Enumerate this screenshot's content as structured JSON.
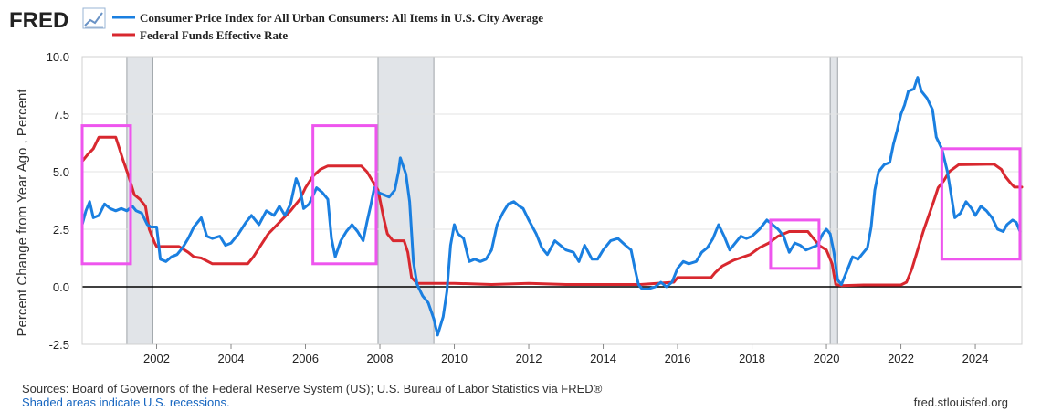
{
  "logo": {
    "text": "FRED",
    "icon": "trend-line-icon"
  },
  "colors": {
    "cpi": "#1a7fe0",
    "ffr": "#d8282f",
    "highlight": "#ee55ee",
    "recession": "#e1e4e8",
    "zero_line": "#000000",
    "grid": "#e3e3e3"
  },
  "footer": {
    "sources": "Sources: Board of Governors of the Federal Reserve System (US); U.S. Bureau of Labor Statistics via FRED®",
    "recession_note": "Shaded areas indicate U.S. recessions.",
    "site": "fred.stlouisfed.org"
  },
  "chart_data": {
    "type": "line",
    "title": "",
    "xlabel": "",
    "ylabel": "Percent Change from Year Ago , Percent",
    "xlim": [
      2000.0,
      2025.25
    ],
    "ylim": [
      -2.5,
      10.0
    ],
    "x_ticks": [
      "2002",
      "2004",
      "2006",
      "2008",
      "2010",
      "2012",
      "2014",
      "2016",
      "2018",
      "2020",
      "2022",
      "2024"
    ],
    "y_ticks": [
      "10.0",
      "7.5",
      "5.0",
      "2.5",
      "0.0",
      "-2.5"
    ],
    "grid": "horizontal",
    "legend_position": "top-left",
    "recessions": [
      [
        2001.2,
        2001.9
      ],
      [
        2007.95,
        2009.45
      ],
      [
        2020.1,
        2020.3
      ]
    ],
    "highlight_boxes": [
      {
        "x": [
          2000.0,
          2001.3
        ],
        "y": [
          1.0,
          7.0
        ]
      },
      {
        "x": [
          2006.2,
          2007.9
        ],
        "y": [
          1.0,
          7.0
        ]
      },
      {
        "x": [
          2018.5,
          2019.8
        ],
        "y": [
          0.8,
          2.9
        ]
      },
      {
        "x": [
          2023.1,
          2025.2
        ],
        "y": [
          1.2,
          6.0
        ]
      }
    ],
    "series": [
      {
        "name": "Consumer Price Index for All Urban Consumers: All Items in U.S. City Average",
        "color": "#1a7fe0",
        "points": [
          [
            2000.0,
            2.7
          ],
          [
            2000.1,
            3.3
          ],
          [
            2000.2,
            3.7
          ],
          [
            2000.3,
            3.0
          ],
          [
            2000.45,
            3.1
          ],
          [
            2000.6,
            3.6
          ],
          [
            2000.75,
            3.4
          ],
          [
            2000.9,
            3.3
          ],
          [
            2001.05,
            3.4
          ],
          [
            2001.2,
            3.3
          ],
          [
            2001.35,
            3.5
          ],
          [
            2001.45,
            3.3
          ],
          [
            2001.6,
            3.2
          ],
          [
            2001.75,
            2.7
          ],
          [
            2001.85,
            2.6
          ],
          [
            2002.0,
            2.6
          ],
          [
            2002.1,
            1.2
          ],
          [
            2002.25,
            1.1
          ],
          [
            2002.4,
            1.3
          ],
          [
            2002.55,
            1.4
          ],
          [
            2002.7,
            1.7
          ],
          [
            2002.85,
            2.1
          ],
          [
            2003.0,
            2.6
          ],
          [
            2003.2,
            3.0
          ],
          [
            2003.35,
            2.2
          ],
          [
            2003.5,
            2.1
          ],
          [
            2003.7,
            2.2
          ],
          [
            2003.85,
            1.8
          ],
          [
            2004.0,
            1.9
          ],
          [
            2004.2,
            2.3
          ],
          [
            2004.4,
            2.8
          ],
          [
            2004.55,
            3.1
          ],
          [
            2004.75,
            2.7
          ],
          [
            2004.95,
            3.3
          ],
          [
            2005.15,
            3.1
          ],
          [
            2005.3,
            3.5
          ],
          [
            2005.45,
            3.1
          ],
          [
            2005.6,
            3.6
          ],
          [
            2005.75,
            4.7
          ],
          [
            2005.85,
            4.3
          ],
          [
            2005.95,
            3.4
          ],
          [
            2006.1,
            3.6
          ],
          [
            2006.3,
            4.3
          ],
          [
            2006.45,
            4.1
          ],
          [
            2006.6,
            3.8
          ],
          [
            2006.7,
            2.1
          ],
          [
            2006.8,
            1.3
          ],
          [
            2006.95,
            2.0
          ],
          [
            2007.1,
            2.4
          ],
          [
            2007.25,
            2.7
          ],
          [
            2007.4,
            2.4
          ],
          [
            2007.55,
            2.0
          ],
          [
            2007.65,
            2.8
          ],
          [
            2007.75,
            3.5
          ],
          [
            2007.85,
            4.3
          ],
          [
            2007.95,
            4.1
          ],
          [
            2008.1,
            4.0
          ],
          [
            2008.25,
            3.9
          ],
          [
            2008.4,
            4.2
          ],
          [
            2008.5,
            5.0
          ],
          [
            2008.55,
            5.6
          ],
          [
            2008.7,
            4.9
          ],
          [
            2008.8,
            3.7
          ],
          [
            2008.9,
            1.1
          ],
          [
            2009.0,
            0.1
          ],
          [
            2009.15,
            -0.4
          ],
          [
            2009.3,
            -0.7
          ],
          [
            2009.45,
            -1.4
          ],
          [
            2009.55,
            -2.1
          ],
          [
            2009.7,
            -1.3
          ],
          [
            2009.8,
            -0.2
          ],
          [
            2009.9,
            1.8
          ],
          [
            2010.0,
            2.7
          ],
          [
            2010.1,
            2.3
          ],
          [
            2010.25,
            2.1
          ],
          [
            2010.4,
            1.1
          ],
          [
            2010.55,
            1.2
          ],
          [
            2010.7,
            1.1
          ],
          [
            2010.85,
            1.2
          ],
          [
            2011.0,
            1.6
          ],
          [
            2011.15,
            2.7
          ],
          [
            2011.3,
            3.2
          ],
          [
            2011.45,
            3.6
          ],
          [
            2011.6,
            3.7
          ],
          [
            2011.75,
            3.5
          ],
          [
            2011.85,
            3.4
          ],
          [
            2012.0,
            2.9
          ],
          [
            2012.2,
            2.3
          ],
          [
            2012.35,
            1.7
          ],
          [
            2012.5,
            1.4
          ],
          [
            2012.7,
            2.0
          ],
          [
            2012.85,
            1.8
          ],
          [
            2013.0,
            1.6
          ],
          [
            2013.2,
            1.5
          ],
          [
            2013.35,
            1.1
          ],
          [
            2013.5,
            1.8
          ],
          [
            2013.7,
            1.2
          ],
          [
            2013.85,
            1.2
          ],
          [
            2014.0,
            1.6
          ],
          [
            2014.2,
            2.0
          ],
          [
            2014.4,
            2.1
          ],
          [
            2014.6,
            1.8
          ],
          [
            2014.75,
            1.6
          ],
          [
            2014.85,
            0.8
          ],
          [
            2014.95,
            0.1
          ],
          [
            2015.05,
            -0.1
          ],
          [
            2015.2,
            -0.1
          ],
          [
            2015.4,
            0.0
          ],
          [
            2015.55,
            0.2
          ],
          [
            2015.7,
            0.0
          ],
          [
            2015.85,
            0.2
          ],
          [
            2016.0,
            0.8
          ],
          [
            2016.15,
            1.1
          ],
          [
            2016.3,
            1.0
          ],
          [
            2016.5,
            1.1
          ],
          [
            2016.65,
            1.5
          ],
          [
            2016.8,
            1.7
          ],
          [
            2016.95,
            2.1
          ],
          [
            2017.1,
            2.7
          ],
          [
            2017.25,
            2.2
          ],
          [
            2017.4,
            1.6
          ],
          [
            2017.55,
            1.9
          ],
          [
            2017.7,
            2.2
          ],
          [
            2017.85,
            2.1
          ],
          [
            2018.0,
            2.2
          ],
          [
            2018.2,
            2.5
          ],
          [
            2018.4,
            2.9
          ],
          [
            2018.55,
            2.7
          ],
          [
            2018.7,
            2.5
          ],
          [
            2018.85,
            2.2
          ],
          [
            2019.0,
            1.5
          ],
          [
            2019.15,
            1.9
          ],
          [
            2019.3,
            1.8
          ],
          [
            2019.45,
            1.6
          ],
          [
            2019.6,
            1.7
          ],
          [
            2019.75,
            1.8
          ],
          [
            2019.9,
            2.3
          ],
          [
            2020.0,
            2.5
          ],
          [
            2020.1,
            2.3
          ],
          [
            2020.2,
            1.5
          ],
          [
            2020.3,
            0.3
          ],
          [
            2020.4,
            0.1
          ],
          [
            2020.55,
            0.7
          ],
          [
            2020.7,
            1.3
          ],
          [
            2020.85,
            1.2
          ],
          [
            2020.95,
            1.4
          ],
          [
            2021.1,
            1.7
          ],
          [
            2021.2,
            2.6
          ],
          [
            2021.3,
            4.2
          ],
          [
            2021.4,
            5.0
          ],
          [
            2021.55,
            5.3
          ],
          [
            2021.7,
            5.4
          ],
          [
            2021.8,
            6.2
          ],
          [
            2021.9,
            6.8
          ],
          [
            2022.0,
            7.5
          ],
          [
            2022.1,
            7.9
          ],
          [
            2022.2,
            8.5
          ],
          [
            2022.35,
            8.6
          ],
          [
            2022.45,
            9.1
          ],
          [
            2022.55,
            8.5
          ],
          [
            2022.7,
            8.2
          ],
          [
            2022.85,
            7.7
          ],
          [
            2022.95,
            6.5
          ],
          [
            2023.1,
            6.0
          ],
          [
            2023.25,
            5.0
          ],
          [
            2023.35,
            4.0
          ],
          [
            2023.45,
            3.0
          ],
          [
            2023.6,
            3.2
          ],
          [
            2023.75,
            3.7
          ],
          [
            2023.9,
            3.4
          ],
          [
            2024.0,
            3.1
          ],
          [
            2024.15,
            3.5
          ],
          [
            2024.3,
            3.3
          ],
          [
            2024.45,
            3.0
          ],
          [
            2024.6,
            2.5
          ],
          [
            2024.75,
            2.4
          ],
          [
            2024.85,
            2.7
          ],
          [
            2025.0,
            2.9
          ],
          [
            2025.1,
            2.8
          ],
          [
            2025.2,
            2.4
          ]
        ]
      },
      {
        "name": "Federal Funds Effective Rate",
        "color": "#d8282f",
        "points": [
          [
            2000.0,
            5.45
          ],
          [
            2000.15,
            5.75
          ],
          [
            2000.3,
            6.0
          ],
          [
            2000.45,
            6.5
          ],
          [
            2000.6,
            6.5
          ],
          [
            2000.75,
            6.5
          ],
          [
            2000.9,
            6.5
          ],
          [
            2001.0,
            6.0
          ],
          [
            2001.1,
            5.5
          ],
          [
            2001.25,
            4.8
          ],
          [
            2001.4,
            4.0
          ],
          [
            2001.55,
            3.8
          ],
          [
            2001.7,
            3.5
          ],
          [
            2001.8,
            2.5
          ],
          [
            2001.95,
            1.9
          ],
          [
            2002.0,
            1.75
          ],
          [
            2002.3,
            1.75
          ],
          [
            2002.6,
            1.75
          ],
          [
            2002.85,
            1.5
          ],
          [
            2003.0,
            1.3
          ],
          [
            2003.2,
            1.25
          ],
          [
            2003.5,
            1.0
          ],
          [
            2003.8,
            1.0
          ],
          [
            2004.0,
            1.0
          ],
          [
            2004.45,
            1.0
          ],
          [
            2004.6,
            1.3
          ],
          [
            2004.8,
            1.8
          ],
          [
            2005.0,
            2.3
          ],
          [
            2005.3,
            2.8
          ],
          [
            2005.6,
            3.3
          ],
          [
            2005.85,
            3.8
          ],
          [
            2006.0,
            4.3
          ],
          [
            2006.2,
            4.8
          ],
          [
            2006.4,
            5.1
          ],
          [
            2006.6,
            5.25
          ],
          [
            2007.5,
            5.25
          ],
          [
            2007.65,
            5.0
          ],
          [
            2007.8,
            4.6
          ],
          [
            2007.95,
            4.2
          ],
          [
            2008.1,
            3.0
          ],
          [
            2008.2,
            2.3
          ],
          [
            2008.35,
            2.0
          ],
          [
            2008.65,
            2.0
          ],
          [
            2008.75,
            1.5
          ],
          [
            2008.85,
            0.4
          ],
          [
            2009.0,
            0.15
          ],
          [
            2010.0,
            0.15
          ],
          [
            2011.0,
            0.1
          ],
          [
            2012.0,
            0.15
          ],
          [
            2013.0,
            0.1
          ],
          [
            2014.0,
            0.1
          ],
          [
            2015.0,
            0.1
          ],
          [
            2015.9,
            0.2
          ],
          [
            2016.0,
            0.4
          ],
          [
            2016.9,
            0.4
          ],
          [
            2017.0,
            0.6
          ],
          [
            2017.2,
            0.9
          ],
          [
            2017.5,
            1.15
          ],
          [
            2017.95,
            1.4
          ],
          [
            2018.2,
            1.7
          ],
          [
            2018.45,
            1.9
          ],
          [
            2018.7,
            2.2
          ],
          [
            2019.0,
            2.4
          ],
          [
            2019.5,
            2.4
          ],
          [
            2019.65,
            2.1
          ],
          [
            2019.8,
            1.8
          ],
          [
            2020.0,
            1.6
          ],
          [
            2020.15,
            1.0
          ],
          [
            2020.25,
            0.1
          ],
          [
            2020.4,
            0.05
          ],
          [
            2021.0,
            0.08
          ],
          [
            2022.0,
            0.08
          ],
          [
            2022.15,
            0.2
          ],
          [
            2022.3,
            0.8
          ],
          [
            2022.45,
            1.6
          ],
          [
            2022.6,
            2.4
          ],
          [
            2022.75,
            3.1
          ],
          [
            2022.9,
            3.8
          ],
          [
            2023.0,
            4.3
          ],
          [
            2023.15,
            4.6
          ],
          [
            2023.3,
            5.0
          ],
          [
            2023.55,
            5.3
          ],
          [
            2024.5,
            5.33
          ],
          [
            2024.7,
            5.1
          ],
          [
            2024.8,
            4.8
          ],
          [
            2024.95,
            4.5
          ],
          [
            2025.05,
            4.33
          ],
          [
            2025.25,
            4.33
          ]
        ]
      }
    ]
  }
}
